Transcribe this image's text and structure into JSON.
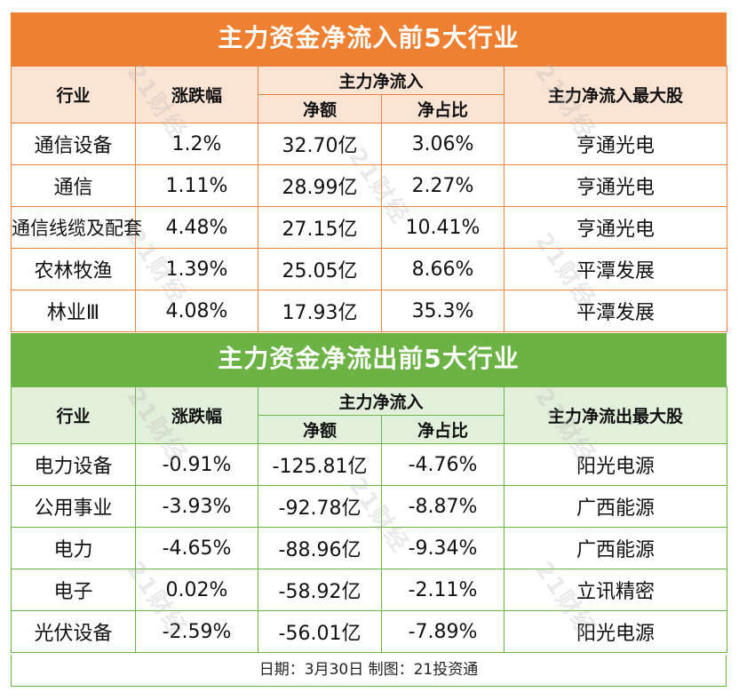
{
  "inflow": {
    "title": "主力资金净流入前5大行业",
    "headers": {
      "industry": "行业",
      "change": "涨跌幅",
      "group": "主力净流入",
      "amount": "净额",
      "ratio": "净占比",
      "top_stock": "主力净流入最大股"
    },
    "rows": [
      {
        "industry": "通信设备",
        "change": "1.2%",
        "amount": "32.70亿",
        "ratio": "3.06%",
        "top_stock": "亨通光电"
      },
      {
        "industry": "通信",
        "change": "1.11%",
        "amount": "28.99亿",
        "ratio": "2.27%",
        "top_stock": "亨通光电"
      },
      {
        "industry": "通信线缆及配套",
        "change": "4.48%",
        "amount": "27.15亿",
        "ratio": "10.41%",
        "top_stock": "亨通光电"
      },
      {
        "industry": "农林牧渔",
        "change": "1.39%",
        "amount": "25.05亿",
        "ratio": "8.66%",
        "top_stock": "平潭发展"
      },
      {
        "industry": "林业Ⅲ",
        "change": "4.08%",
        "amount": "17.93亿",
        "ratio": "35.3%",
        "top_stock": "平潭发展"
      }
    ]
  },
  "outflow": {
    "title": "主力资金净流出前5大行业",
    "headers": {
      "industry": "行业",
      "change": "涨跌幅",
      "group": "主力净流入",
      "amount": "净额",
      "ratio": "净占比",
      "top_stock": "主力净流出最大股"
    },
    "rows": [
      {
        "industry": "电力设备",
        "change": "-0.91%",
        "amount": "-125.81亿",
        "ratio": "-4.76%",
        "top_stock": "阳光电源"
      },
      {
        "industry": "公用事业",
        "change": "-3.93%",
        "amount": "-92.78亿",
        "ratio": "-8.87%",
        "top_stock": "广西能源"
      },
      {
        "industry": "电力",
        "change": "-4.65%",
        "amount": "-88.96亿",
        "ratio": "-9.34%",
        "top_stock": "广西能源"
      },
      {
        "industry": "电子",
        "change": "0.02%",
        "amount": "-58.92亿",
        "ratio": "-2.11%",
        "top_stock": "立讯精密"
      },
      {
        "industry": "光伏设备",
        "change": "-2.59%",
        "amount": "-56.01亿",
        "ratio": "-7.89%",
        "top_stock": "阳光电源"
      }
    ]
  },
  "footer": "日期：3月30日 制图：21投资通",
  "watermark": "21财经",
  "colors": {
    "orange_title": "#ef7f31",
    "orange_header": "#fce4d5",
    "green_title": "#6cb345",
    "green_header": "#e2efda"
  }
}
